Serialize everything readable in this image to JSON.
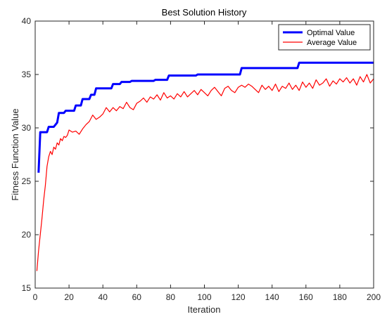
{
  "chart_data": {
    "type": "line",
    "title": "Best Solution History",
    "xlabel": "Iteration",
    "ylabel": "Fitness Function Value",
    "xlim": [
      0,
      200
    ],
    "ylim": [
      15,
      40
    ],
    "xticks": [
      "0",
      "20",
      "40",
      "60",
      "80",
      "100",
      "120",
      "140",
      "160",
      "180",
      "200"
    ],
    "yticks": [
      "15",
      "20",
      "25",
      "30",
      "35",
      "40"
    ],
    "grid": false,
    "legend_position": "top-right",
    "series": [
      {
        "name": "Optimal Value",
        "color": "#0000ff",
        "style": "step",
        "x": [
          2,
          3,
          7,
          8,
          11,
          13,
          14,
          17,
          18,
          23,
          24,
          27,
          28,
          32,
          33,
          35,
          36,
          45,
          46,
          50,
          51,
          56,
          57,
          70,
          71,
          78,
          79,
          95,
          96,
          121,
          122,
          128,
          129,
          155,
          156,
          200
        ],
        "y": [
          25.8,
          29.6,
          29.6,
          30.1,
          30.1,
          30.5,
          31.4,
          31.4,
          31.6,
          31.6,
          32.1,
          32.1,
          32.7,
          32.7,
          33.1,
          33.1,
          33.7,
          33.7,
          34.1,
          34.1,
          34.3,
          34.3,
          34.4,
          34.4,
          34.5,
          34.5,
          34.9,
          34.9,
          35.0,
          35.0,
          35.6,
          35.6,
          35.6,
          35.6,
          36.1,
          36.1
        ]
      },
      {
        "name": "Average Value",
        "color": "#ff0000",
        "style": "line",
        "x": [
          1,
          2,
          3,
          4,
          5,
          6,
          7,
          8,
          9,
          10,
          11,
          12,
          13,
          14,
          15,
          16,
          17,
          18,
          19,
          20,
          22,
          24,
          26,
          28,
          30,
          32,
          34,
          36,
          38,
          40,
          42,
          44,
          46,
          48,
          50,
          52,
          54,
          56,
          58,
          60,
          62,
          64,
          66,
          68,
          70,
          72,
          74,
          76,
          78,
          80,
          82,
          84,
          86,
          88,
          90,
          92,
          94,
          96,
          98,
          100,
          102,
          104,
          106,
          108,
          110,
          112,
          114,
          116,
          118,
          120,
          122,
          124,
          126,
          128,
          130,
          132,
          134,
          136,
          138,
          140,
          142,
          144,
          146,
          148,
          150,
          152,
          154,
          156,
          158,
          160,
          162,
          164,
          166,
          168,
          170,
          172,
          174,
          176,
          178,
          180,
          182,
          184,
          186,
          188,
          190,
          192,
          194,
          196,
          198,
          200
        ],
        "y": [
          16.6,
          18.5,
          20.0,
          21.5,
          23.2,
          24.6,
          26.4,
          27.3,
          27.8,
          27.5,
          28.2,
          28.0,
          28.6,
          28.4,
          29.0,
          28.8,
          29.2,
          29.1,
          29.3,
          29.8,
          29.6,
          29.7,
          29.4,
          29.9,
          30.3,
          30.6,
          31.2,
          30.8,
          31.0,
          31.3,
          31.9,
          31.5,
          31.9,
          31.6,
          32.0,
          31.8,
          32.4,
          31.9,
          31.7,
          32.3,
          32.5,
          32.8,
          32.4,
          32.9,
          32.7,
          33.1,
          32.6,
          33.3,
          32.8,
          33.0,
          32.7,
          33.2,
          32.9,
          33.4,
          32.9,
          33.2,
          33.5,
          33.1,
          33.6,
          33.3,
          33.0,
          33.5,
          33.8,
          33.4,
          33.0,
          33.7,
          33.9,
          33.5,
          33.3,
          33.8,
          34.0,
          33.8,
          34.1,
          33.9,
          33.6,
          33.3,
          34.0,
          33.6,
          33.9,
          33.5,
          34.1,
          33.4,
          33.9,
          33.7,
          34.2,
          33.6,
          34.0,
          33.5,
          34.3,
          33.8,
          34.2,
          33.7,
          34.5,
          34.0,
          34.2,
          34.6,
          33.9,
          34.4,
          34.1,
          34.6,
          34.3,
          34.7,
          34.2,
          34.6,
          34.0,
          34.8,
          34.3,
          35.0,
          34.2,
          34.6
        ]
      }
    ]
  }
}
